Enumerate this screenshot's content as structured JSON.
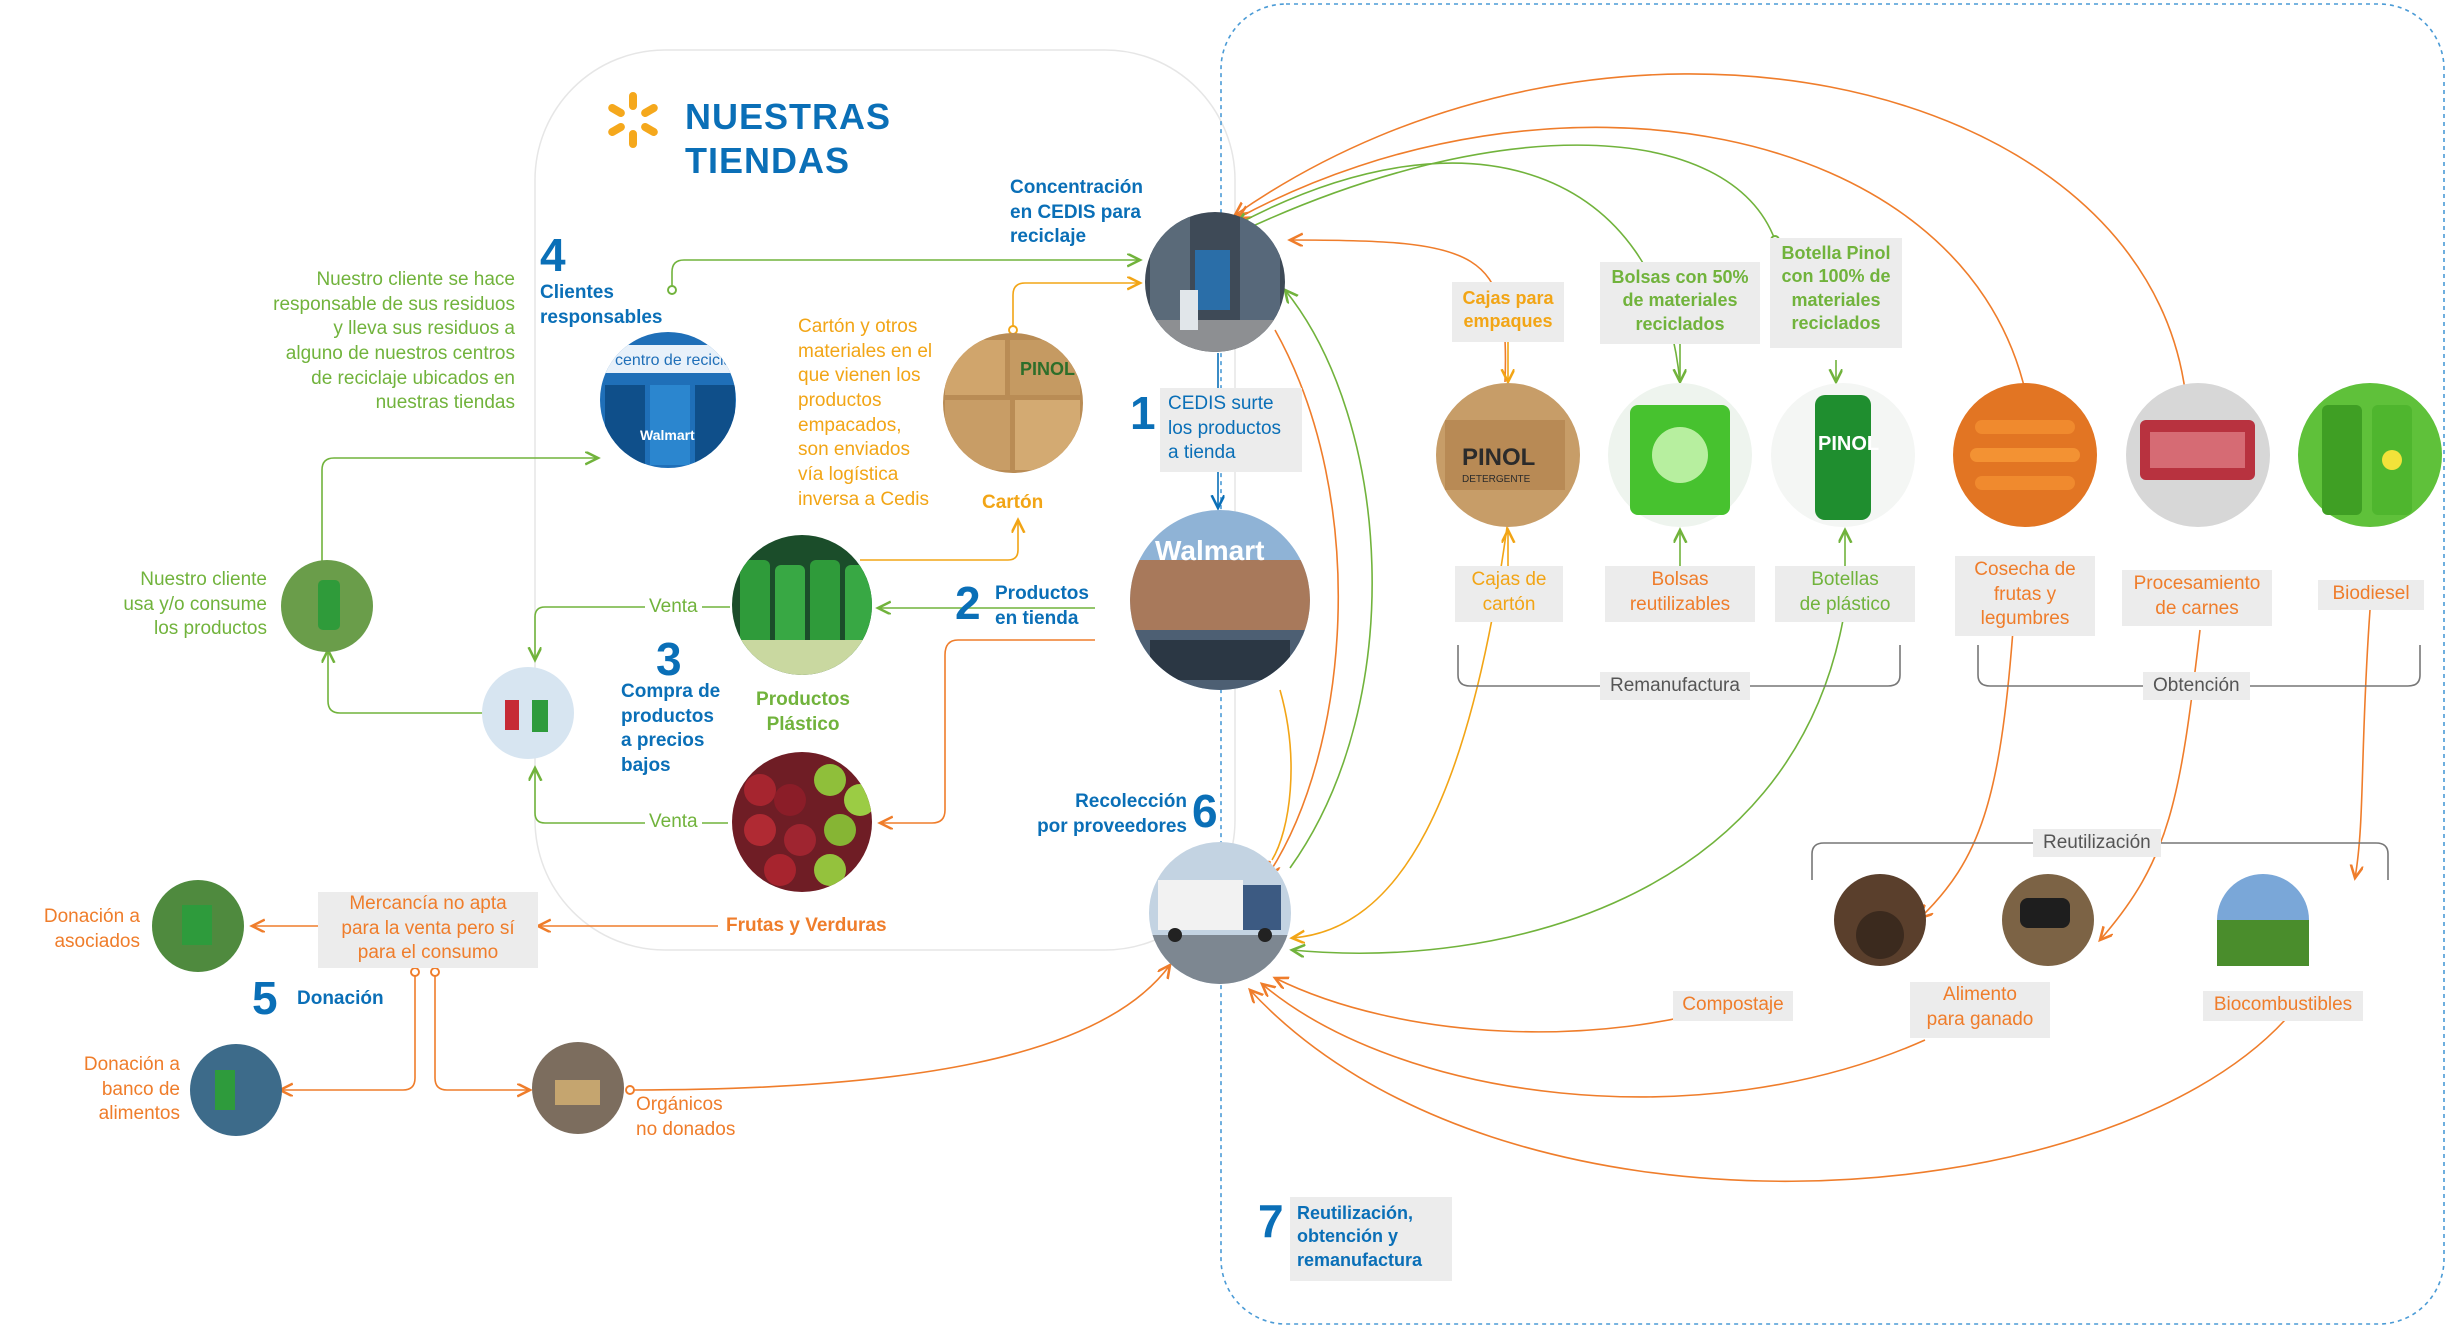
{
  "colors": {
    "blue": "#0a6fb7",
    "green": "#71b33c",
    "orange": "#ef7d2b",
    "yellow": "#f2a516",
    "gray_box": "#ececec",
    "dashed_border": "#4b9bd6"
  },
  "header": {
    "logo_icon": "walmart-spark-icon",
    "title_line1": "NUESTRAS",
    "title_line2": "TIENDAS"
  },
  "steps": {
    "s1": {
      "number": "1",
      "label": "CEDIS surte\nlos productos\na tienda"
    },
    "s2": {
      "number": "2",
      "label": "Productos\nen tienda"
    },
    "s3": {
      "number": "3",
      "label": "Compra de\nproductos\na precios\nbajos"
    },
    "s4": {
      "number": "4",
      "label": "Clientes\nresponsables"
    },
    "s5": {
      "number": "5",
      "label": "Donación"
    },
    "s6": {
      "number": "6",
      "label": "Recolección\npor proveedores"
    },
    "s7": {
      "number": "7",
      "label": "Reutilización,\nobtención y\nremanufactura"
    }
  },
  "texts": {
    "concentracion": "Concentración\nen CEDIS para\nreciclaje",
    "cliente_responsable": "Nuestro cliente se hace\nresponsable de sus residuos\ny lleva sus residuos a\nalguno de nuestros centros\nde reciclaje ubicados en\nnuestras tiendas",
    "carton_desc": "Cartón y otros\nmateriales en el\nque vienen los\nproductos\nempacados,\nson enviados\nvía logística\ninversa a Cedis",
    "carton": "Cartón",
    "cliente_usa": "Nuestro cliente\nusa y/o consume\nlos productos",
    "venta_top": "Venta",
    "venta_bottom": "Venta",
    "productos_plastico": "Productos\nPlástico",
    "frutas_verduras": "Frutas y Verduras",
    "mercancia": "Mercancía no apta\npara la venta pero sí\npara el consumo",
    "donacion_asociados": "Donación a\nasociados",
    "donacion_banco": "Donación a\nbanco de\nalimentos",
    "organicos": "Orgánicos\nno donados",
    "cajas_empaques": "Cajas para\nempaques",
    "bolsas_50": "Bolsas con 50%\nde materiales\nreciclados",
    "botella_pinol": "Botella Pinol\ncon 100% de\nmateriales\nreciclados",
    "cajas_carton": "Cajas de\ncartón",
    "bolsas_reutilizables": "Bolsas\nreutilizables",
    "botellas_plastico": "Botellas\nde plástico",
    "cosecha": "Cosecha de\nfrutas y\nlegumbres",
    "procesamiento": "Procesamiento\nde carnes",
    "biodiesel": "Biodiesel",
    "remanufactura": "Remanufactura",
    "obtencion": "Obtención",
    "reutilizacion": "Reutilización",
    "compostaje": "Compostaje",
    "alimento_ganado": "Alimento\npara ganado",
    "biocombustibles": "Biocombustibles"
  },
  "photo_labels": {
    "recycling_center": "centro de reciclaje",
    "recycling_walmart": "Walmart",
    "store_sign": "Walmart",
    "pinol": "PINOL",
    "pinol_box_brand": "PINOL",
    "pinol_box_sub": "DETERGENTE"
  }
}
